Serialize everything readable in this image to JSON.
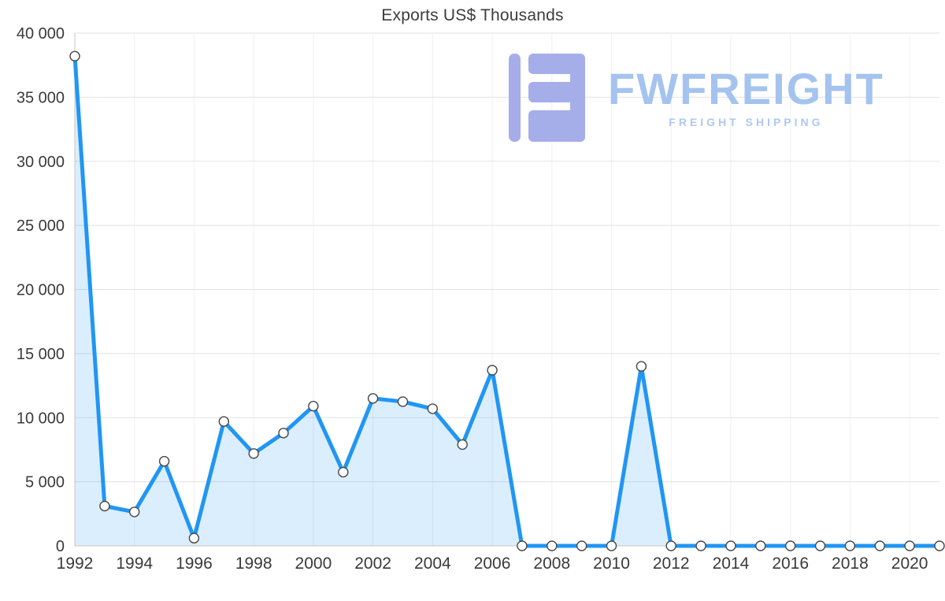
{
  "chart_data": {
    "type": "area",
    "title": "Exports US$ Thousands",
    "x": [
      1992,
      1993,
      1994,
      1995,
      1996,
      1997,
      1998,
      1999,
      2000,
      2001,
      2002,
      2003,
      2004,
      2005,
      2006,
      2007,
      2008,
      2009,
      2010,
      2011,
      2012,
      2013,
      2014,
      2015,
      2016,
      2017,
      2018,
      2019,
      2020,
      2021
    ],
    "values": [
      38200,
      3100,
      2650,
      6600,
      600,
      9700,
      7200,
      8800,
      10900,
      5750,
      11500,
      11250,
      10700,
      7900,
      13700,
      0,
      0,
      0,
      0,
      14000,
      0,
      0,
      0,
      0,
      0,
      0,
      0,
      0,
      0,
      0
    ],
    "xlim": [
      1992,
      2021
    ],
    "ylim": [
      0,
      40000
    ],
    "y_ticks": [
      {
        "value": 0,
        "label": "0"
      },
      {
        "value": 5000,
        "label": "5 000"
      },
      {
        "value": 10000,
        "label": "10 000"
      },
      {
        "value": 15000,
        "label": "15 000"
      },
      {
        "value": 20000,
        "label": "20 000"
      },
      {
        "value": 25000,
        "label": "25 000"
      },
      {
        "value": 30000,
        "label": "30 000"
      },
      {
        "value": 35000,
        "label": "35 000"
      },
      {
        "value": 40000,
        "label": "40 000"
      }
    ],
    "x_tick_labels": [
      "1992",
      "1994",
      "1996",
      "1998",
      "2000",
      "2002",
      "2004",
      "2006",
      "2008",
      "2010",
      "2012",
      "2014",
      "2016",
      "2018",
      "2020"
    ],
    "grid": true,
    "legend": "none",
    "colors": {
      "line": "#2196f3",
      "fill": "rgba(33,150,243,0.16)",
      "marker_fill": "#ffffff",
      "marker_stroke": "#474747",
      "grid": "#e2e2e2",
      "vgrid": "#f0f0f0",
      "axis": "#c6c6c6",
      "text": "#3a3a3a"
    }
  },
  "watermark": {
    "brand": "FWFREIGHT",
    "tagline": "FREIGHT SHIPPING",
    "brand_color": "#a4c3ef",
    "tagline_color": "#aec9f1",
    "logo_color": "#a6aeea"
  }
}
